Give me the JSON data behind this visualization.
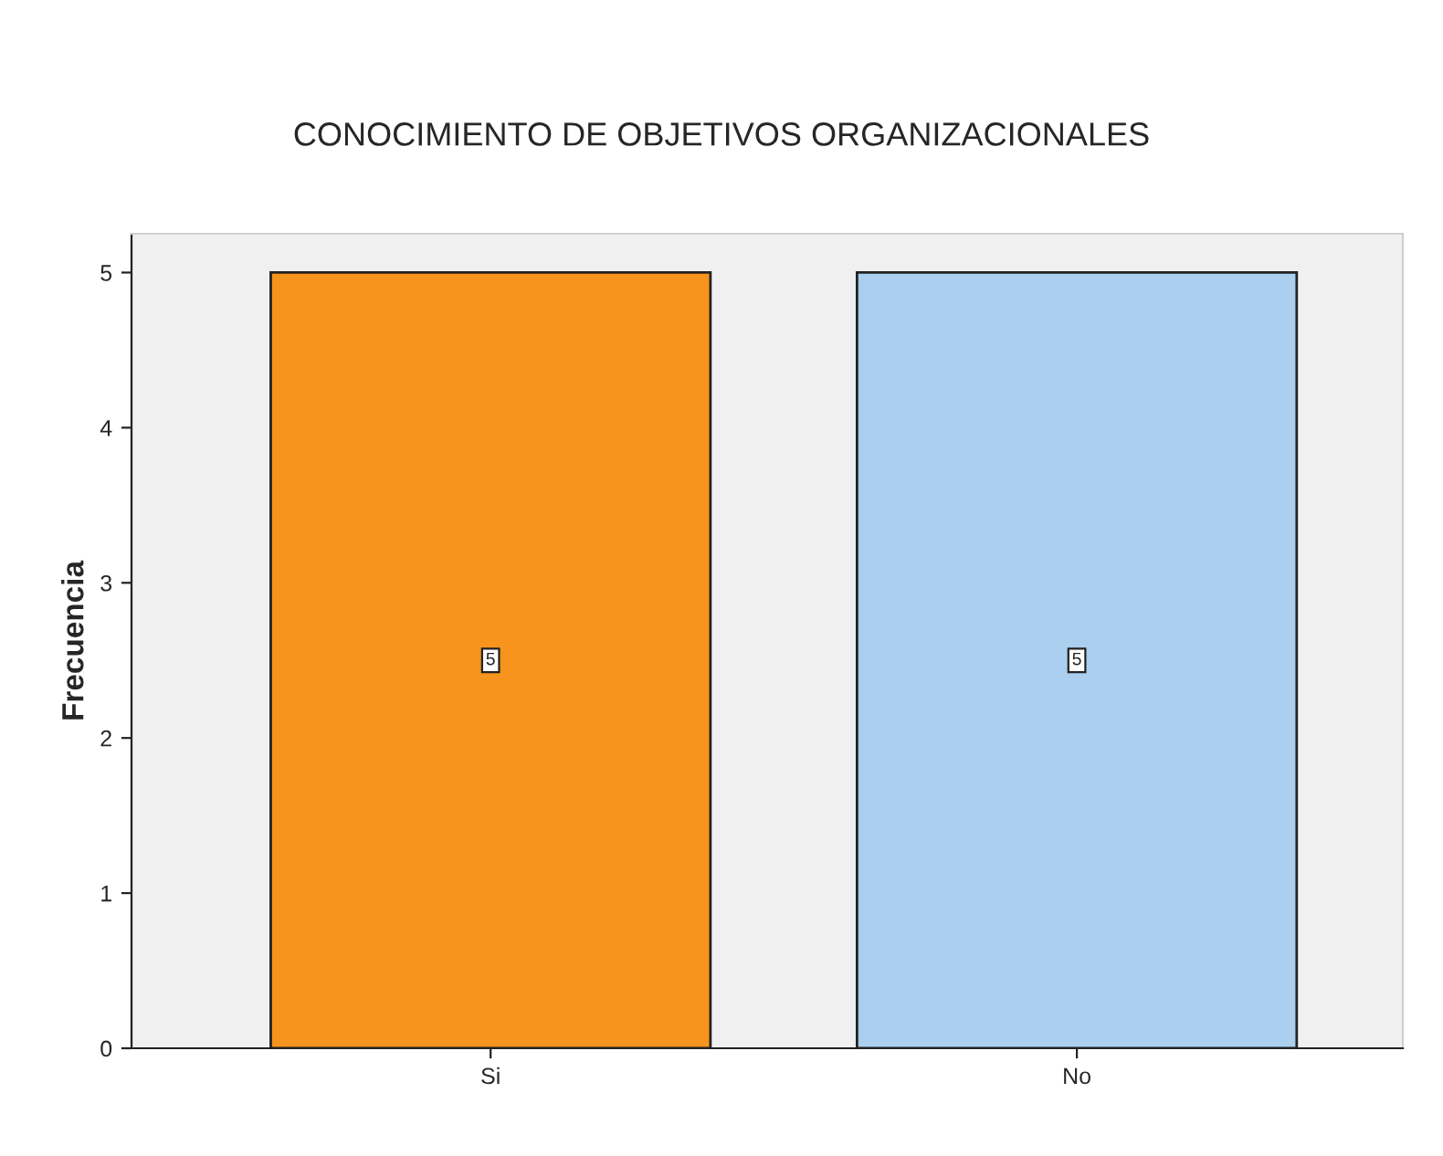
{
  "chart_data": {
    "type": "bar",
    "title": "CONOCIMIENTO DE OBJETIVOS ORGANIZACIONALES",
    "ylabel": "Frecuencia",
    "categories": [
      "Si",
      "No"
    ],
    "values": [
      5,
      5
    ],
    "colors": [
      "#f7941d",
      "#abcfee"
    ],
    "ylim": [
      0,
      5.25
    ],
    "yticks": [
      0,
      1,
      2,
      3,
      4,
      5
    ],
    "grid": false,
    "data_labels": true
  }
}
